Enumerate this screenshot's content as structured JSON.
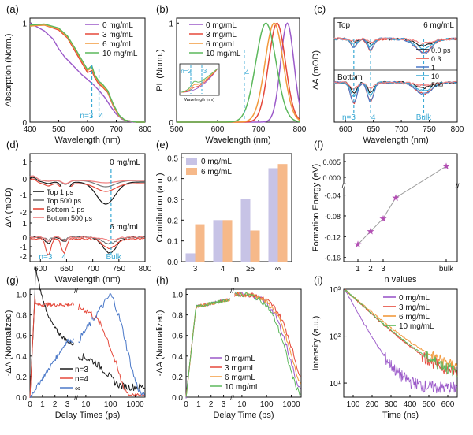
{
  "colors": {
    "purple": "#9b59c9",
    "red": "#e5483a",
    "orange": "#f29a3d",
    "green": "#5cb85c",
    "black": "#1a1a1a",
    "gray": "#777777",
    "pink": "#f08080",
    "blue": "#4a78c8",
    "cyan": "#39a9d4",
    "lavender": "#c7c3e6",
    "peach": "#f6b98a",
    "star": "#b24fb3"
  },
  "chart_data": [
    {
      "panel": "(a)",
      "type": "line",
      "xlabel": "Wavelength (nm)",
      "ylabel": "Absorption (Norm.)",
      "xlim": [
        400,
        800
      ],
      "ylim": [
        0,
        1.05
      ],
      "xticks": [
        400,
        500,
        600,
        700,
        800
      ],
      "yticks": [
        0,
        1
      ],
      "legend_position": "top-right",
      "annotations": [
        "n=3",
        "4"
      ],
      "series": [
        {
          "name": "0 mg/mL",
          "color": "purple",
          "x": [
            400,
            450,
            480,
            500,
            520,
            540,
            560,
            580,
            600,
            620,
            640,
            660,
            680,
            700,
            720,
            740,
            760,
            780,
            800
          ],
          "y": [
            1.0,
            0.92,
            0.84,
            0.74,
            0.66,
            0.6,
            0.54,
            0.48,
            0.43,
            0.38,
            0.32,
            0.25,
            0.16,
            0.08,
            0.03,
            0.01,
            0.0,
            0.0,
            0.0
          ]
        },
        {
          "name": "3 mg/mL",
          "color": "red",
          "x": [
            400,
            450,
            500,
            530,
            560,
            580,
            600,
            615,
            625,
            640,
            650,
            670,
            690,
            710,
            730,
            750,
            770,
            800
          ],
          "y": [
            0.97,
            0.98,
            0.93,
            0.85,
            0.7,
            0.6,
            0.5,
            0.52,
            0.45,
            0.38,
            0.36,
            0.3,
            0.16,
            0.06,
            0.02,
            0.01,
            0.0,
            0.0
          ]
        },
        {
          "name": "6 mg/mL",
          "color": "orange",
          "x": [
            400,
            450,
            500,
            530,
            560,
            580,
            600,
            615,
            625,
            640,
            650,
            670,
            690,
            710,
            730,
            750,
            770,
            800
          ],
          "y": [
            0.97,
            0.98,
            0.94,
            0.86,
            0.72,
            0.62,
            0.52,
            0.55,
            0.47,
            0.4,
            0.37,
            0.31,
            0.17,
            0.06,
            0.02,
            0.01,
            0.0,
            0.0
          ]
        },
        {
          "name": "10 mg/mL",
          "color": "green",
          "x": [
            400,
            450,
            500,
            530,
            560,
            580,
            600,
            615,
            625,
            640,
            650,
            670,
            690,
            710,
            730,
            750,
            770,
            800
          ],
          "y": [
            0.98,
            0.99,
            0.95,
            0.87,
            0.73,
            0.63,
            0.53,
            0.57,
            0.48,
            0.41,
            0.39,
            0.32,
            0.18,
            0.07,
            0.02,
            0.01,
            0.0,
            0.0
          ]
        }
      ]
    },
    {
      "panel": "(b)",
      "type": "line",
      "xlabel": "Wavelength (nm)",
      "ylabel": "PL (Norm.)",
      "xlim": [
        500,
        800
      ],
      "ylim": [
        0,
        1.05
      ],
      "xticks": [
        500,
        600,
        700,
        800
      ],
      "yticks": [
        0,
        1
      ],
      "legend_position": "top-left",
      "inset": {
        "annotations": [
          "n=2",
          "3"
        ],
        "xlabel": "Wavelength (nm)"
      },
      "annotations": [
        "4"
      ],
      "series": [
        {
          "name": "0 mg/mL",
          "color": "purple",
          "peak": 770,
          "fwhm": 38
        },
        {
          "name": "3 mg/mL",
          "color": "red",
          "peak": 745,
          "fwhm": 48
        },
        {
          "name": "6 mg/mL",
          "color": "orange",
          "peak": 738,
          "fwhm": 52
        },
        {
          "name": "10 mg/mL",
          "color": "green",
          "peak": 718,
          "fwhm": 58
        }
      ]
    },
    {
      "panel": "(c)",
      "type": "line",
      "xlabel": "Wavelength (nm)",
      "ylabel": "ΔA (mOD)",
      "xlim": [
        580,
        800
      ],
      "xticks": [
        600,
        650,
        700,
        750,
        800
      ],
      "title_right": "6 mg/mL",
      "subplots": [
        "Top",
        "Bottom"
      ],
      "legend_position": "right",
      "annotations": [
        "n=3",
        "4",
        "Bulk"
      ],
      "series": [
        {
          "name": "0.0 ps",
          "color": "black"
        },
        {
          "name": "0.3",
          "color": "red"
        },
        {
          "name": "1",
          "color": "blue"
        },
        {
          "name": "10",
          "color": "cyan"
        },
        {
          "name": "500",
          "color": "pink"
        }
      ]
    },
    {
      "panel": "(d)",
      "type": "line",
      "xlabel": "Wavelength (nm)",
      "ylabel": "ΔA (mOD)",
      "xlim": [
        580,
        800
      ],
      "xticks": [
        600,
        650,
        700,
        750,
        800
      ],
      "ylim": [
        -2,
        1
      ],
      "yticks": [
        -2,
        -1,
        0,
        1
      ],
      "annotations": [
        "0 mg/mL",
        "6 mg/mL",
        "n=3",
        "4",
        "Bulk"
      ],
      "legend_position": "middle-left",
      "series": [
        {
          "name": "Top 1 ps",
          "color": "black"
        },
        {
          "name": "Top 500 ps",
          "color": "gray"
        },
        {
          "name": "Bottom 1 ps",
          "color": "red"
        },
        {
          "name": "Bottom 500 ps",
          "color": "pink"
        }
      ]
    },
    {
      "panel": "(e)",
      "type": "bar",
      "xlabel": "n",
      "ylabel": "Contribution (a.u.)",
      "ylim": [
        0,
        0.52
      ],
      "yticks": [
        0.0,
        0.1,
        0.2,
        0.3,
        0.4,
        0.5
      ],
      "categories": [
        "3",
        "4",
        "≥5",
        "∞"
      ],
      "legend_position": "top-left",
      "series": [
        {
          "name": "0 mg/mL",
          "color": "lavender",
          "values": [
            0.04,
            0.2,
            0.3,
            0.45
          ]
        },
        {
          "name": "6 mg/mL",
          "color": "peach",
          "values": [
            0.18,
            0.2,
            0.15,
            0.47
          ]
        }
      ]
    },
    {
      "panel": "(f)",
      "type": "scatter",
      "xlabel": "n values",
      "ylabel": "Formation Energy (eV)",
      "categories": [
        "1",
        "2",
        "3",
        "",
        "bulk"
      ],
      "upper_yticks": [
        0.0,
        0.005
      ],
      "lower_yticks": [
        -0.16,
        -0.12,
        -0.08,
        -0.04
      ],
      "points": [
        {
          "x": "1",
          "y": -0.135
        },
        {
          "x": "2",
          "y": -0.11
        },
        {
          "x": "3",
          "y": -0.085
        },
        {
          "x": "4",
          "y": -0.045
        },
        {
          "x": "bulk",
          "y": 0.0035
        }
      ]
    },
    {
      "panel": "(g)",
      "type": "line",
      "xlabel": "Delay Times (ps)",
      "ylabel": "-ΔA (Normalized)",
      "xticks": [
        "0",
        "1",
        "2",
        "3",
        "10",
        "100",
        "1000"
      ],
      "ylim": [
        0,
        1.05
      ],
      "yticks": [
        0.0,
        0.2,
        0.4,
        0.6,
        0.8,
        1.0
      ],
      "legend_position": "bottom-left",
      "series": [
        {
          "name": "n=3",
          "color": "black"
        },
        {
          "name": "n=4",
          "color": "red"
        },
        {
          "name": "∞",
          "color": "blue"
        }
      ]
    },
    {
      "panel": "(h)",
      "type": "line",
      "xlabel": "Delay Time (ps)",
      "ylabel": "-ΔA (Normalized)",
      "xticks": [
        "0",
        "1",
        "2",
        "3",
        "10",
        "100",
        "1000"
      ],
      "ylim": [
        0,
        1.05
      ],
      "yticks": [
        0.0,
        0.2,
        0.4,
        0.6,
        0.8,
        1.0
      ],
      "legend_position": "bottom-center",
      "series": [
        {
          "name": "0 mg/mL",
          "color": "purple"
        },
        {
          "name": "3 mg/mL",
          "color": "red"
        },
        {
          "name": "6 mg/mL",
          "color": "orange"
        },
        {
          "name": "10 mg/mL",
          "color": "green"
        }
      ]
    },
    {
      "panel": "(i)",
      "type": "line",
      "xlabel": "Time (ns)",
      "ylabel": "Intensity (a.u.)",
      "xlim": [
        50,
        650
      ],
      "xticks": [
        100,
        200,
        300,
        400,
        500,
        600
      ],
      "yscale": "log",
      "ylim": [
        5,
        1000
      ],
      "yticks": [
        "10¹",
        "10²",
        "10³"
      ],
      "legend_position": "top-right",
      "series": [
        {
          "name": "0 mg/mL",
          "color": "purple",
          "tau": 60,
          "floor": 8
        },
        {
          "name": "3 mg/mL",
          "color": "red",
          "tau": 115,
          "floor": 12
        },
        {
          "name": "6 mg/mL",
          "color": "orange",
          "tau": 125,
          "floor": 14
        },
        {
          "name": "10 mg/mL",
          "color": "green",
          "tau": 118,
          "floor": 12
        }
      ]
    }
  ]
}
